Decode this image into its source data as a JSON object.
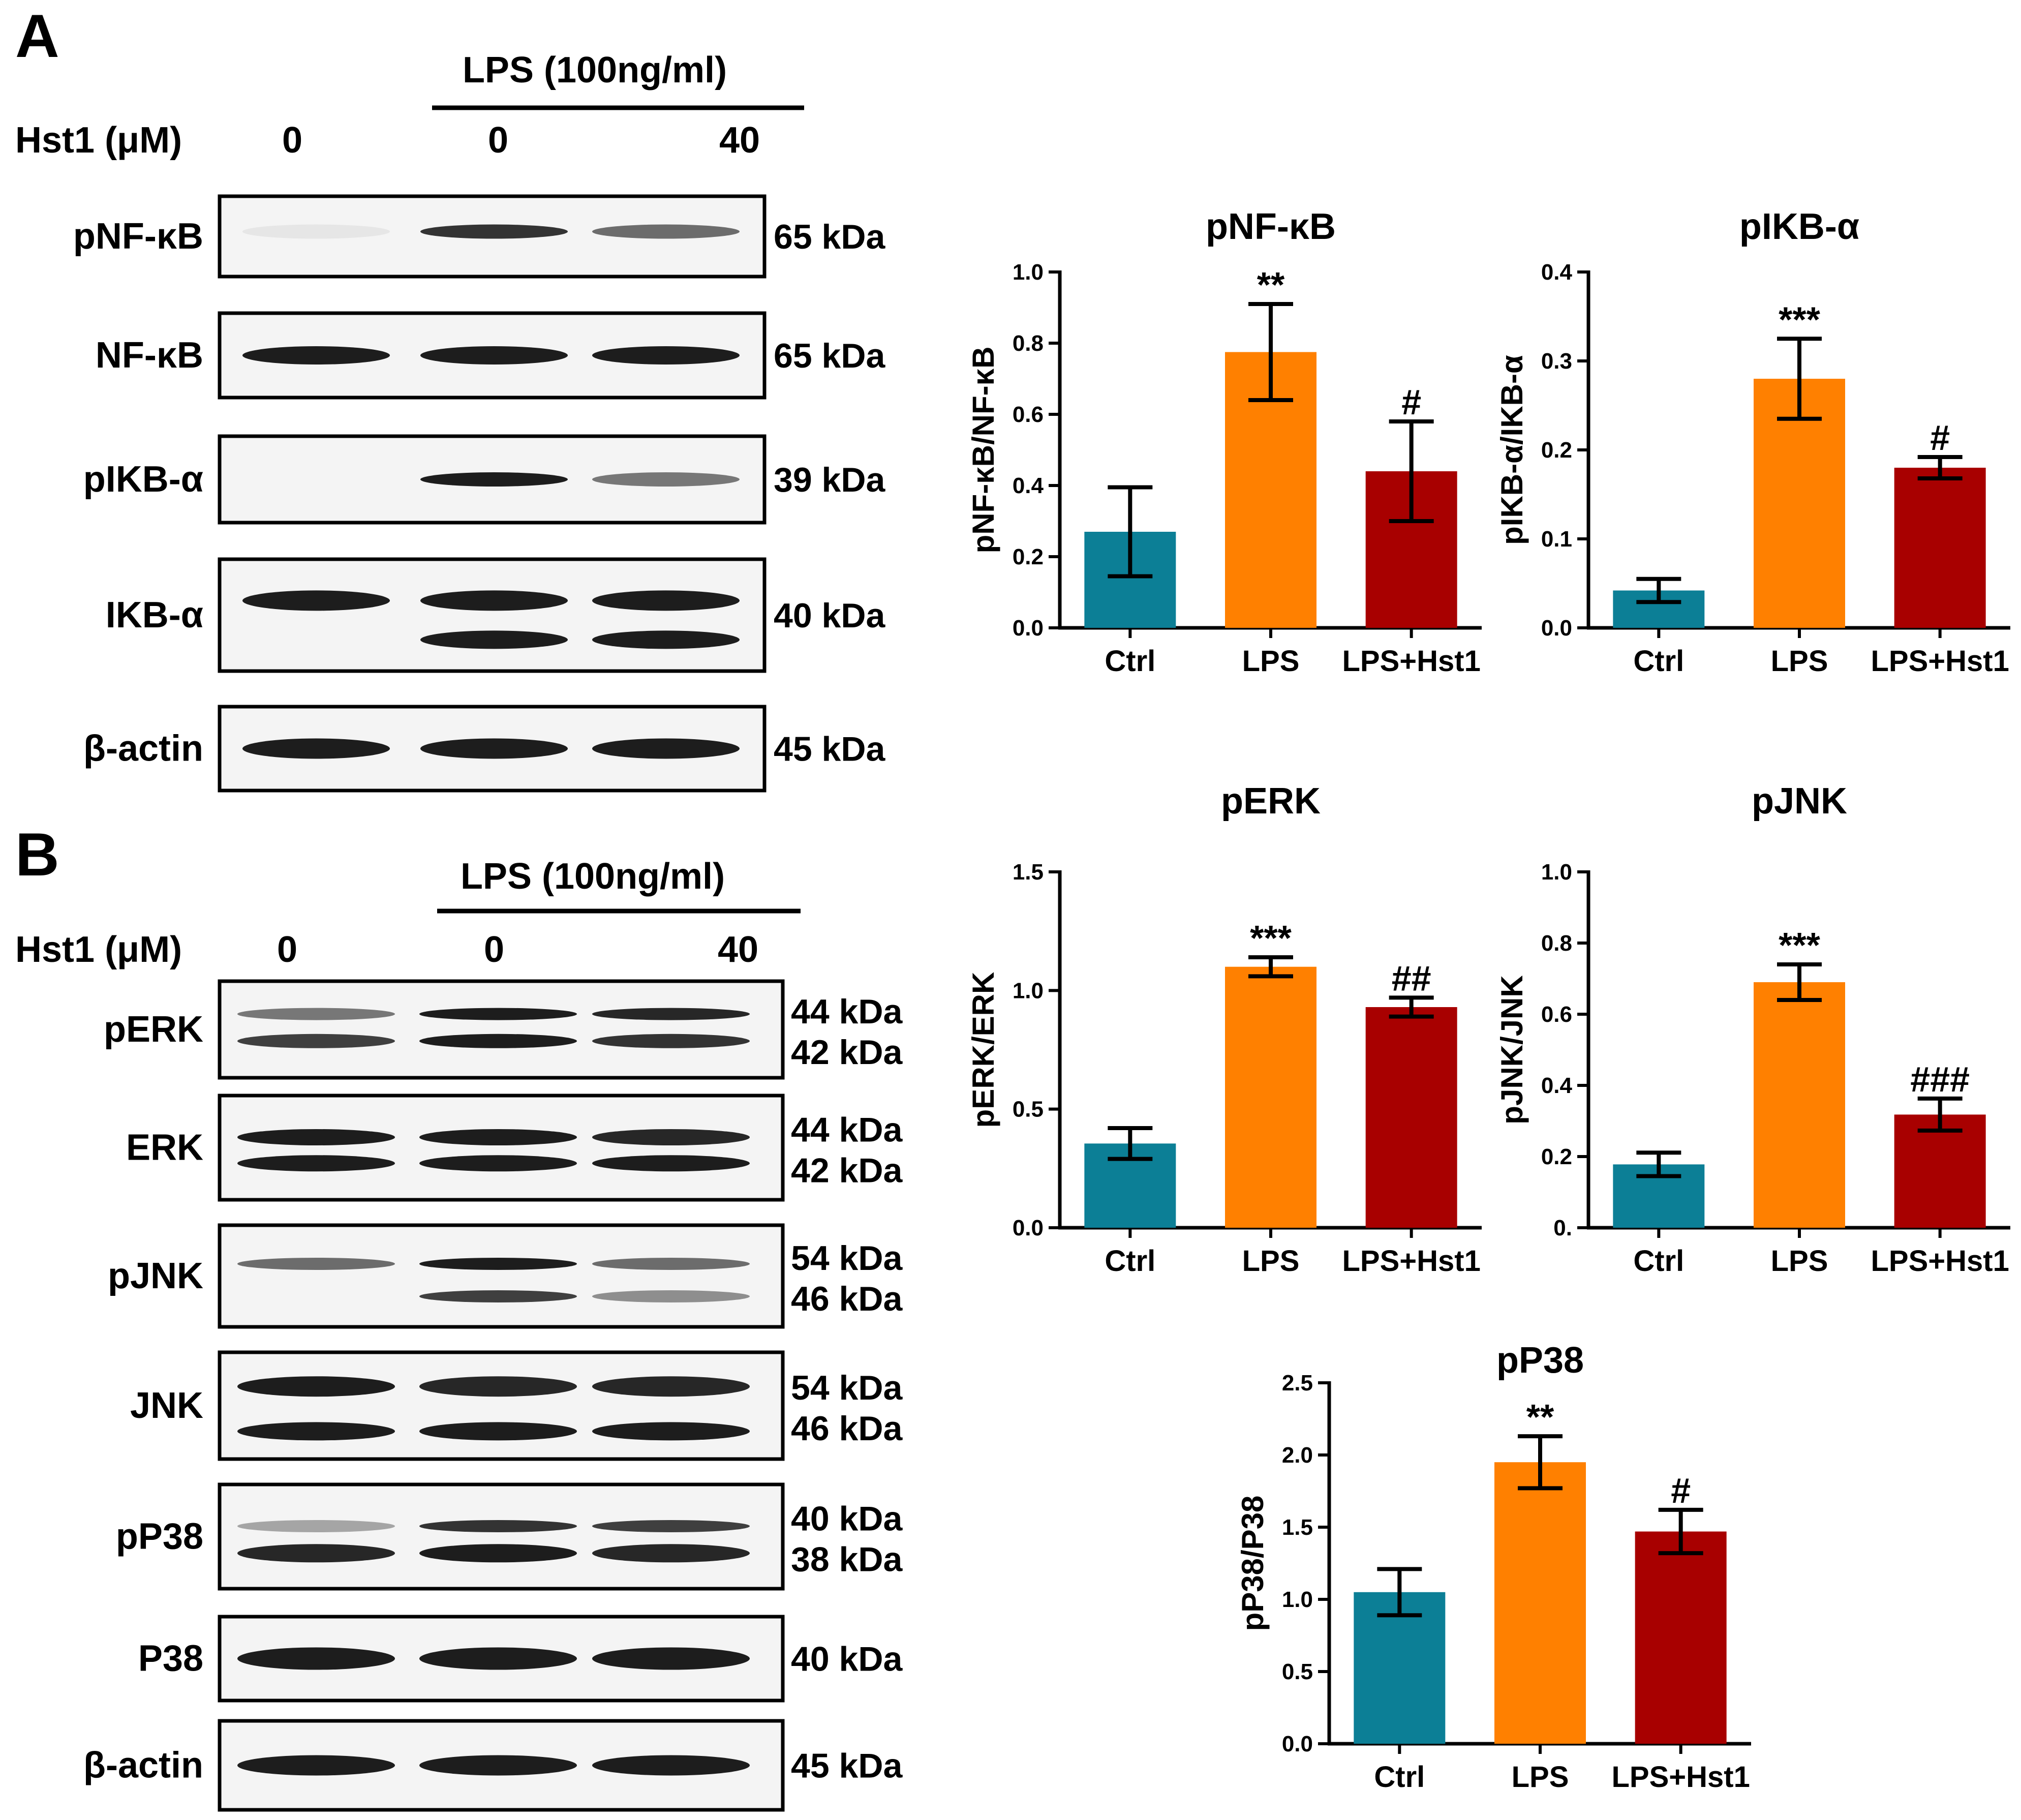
{
  "panel_a": {
    "letter": "A",
    "lps_header": "LPS (100ng/ml)",
    "hst_label": "Hst1 (μM)",
    "doses": [
      "0",
      "0",
      "40"
    ],
    "blots": [
      {
        "name": "pNF-κB",
        "kda": [
          "65 kDa"
        ]
      },
      {
        "name": "NF-κB",
        "kda": [
          "65 kDa"
        ]
      },
      {
        "name": "pIKB-α",
        "kda": [
          "39 kDa"
        ]
      },
      {
        "name": "IKB-α",
        "kda": [
          "40 kDa"
        ]
      },
      {
        "name": "β-actin",
        "kda": [
          "45 kDa"
        ]
      }
    ]
  },
  "panel_b": {
    "letter": "B",
    "lps_header": "LPS (100ng/ml)",
    "hst_label": "Hst1 (μM)",
    "doses": [
      "0",
      "0",
      "40"
    ],
    "blots": [
      {
        "name": "pERK",
        "kda": [
          "44 kDa",
          "42 kDa"
        ]
      },
      {
        "name": "ERK",
        "kda": [
          "44 kDa",
          "42 kDa"
        ]
      },
      {
        "name": "pJNK",
        "kda": [
          "54 kDa",
          "46 kDa"
        ]
      },
      {
        "name": "JNK",
        "kda": [
          "54 kDa",
          "46 kDa"
        ]
      },
      {
        "name": "pP38",
        "kda": [
          "40 kDa",
          "38 kDa"
        ]
      },
      {
        "name": "P38",
        "kda": [
          "40 kDa"
        ]
      },
      {
        "name": "β-actin",
        "kda": [
          "45 kDa"
        ]
      }
    ]
  },
  "colors": {
    "ctrl": "#0c7f96",
    "lps": "#ff8000",
    "lps_hst1": "#a80000"
  },
  "chart_data": [
    {
      "type": "bar",
      "title": "pNF-κB",
      "ylabel": "pNF-κB/NF-κB",
      "categories": [
        "Ctrl",
        "LPS",
        "LPS+Hst1"
      ],
      "values": [
        0.27,
        0.775,
        0.44
      ],
      "errors": [
        0.125,
        0.135,
        0.14
      ],
      "significance": [
        "",
        "**",
        "#"
      ],
      "ylim": [
        0,
        1.0
      ],
      "yticks": [
        "0.0",
        "0.2",
        "0.4",
        "0.6",
        "0.8",
        "1.0"
      ]
    },
    {
      "type": "bar",
      "title": "pIKB-α",
      "ylabel": "pIKB-α/IKB-α",
      "categories": [
        "Ctrl",
        "LPS",
        "LPS+Hst1"
      ],
      "values": [
        0.042,
        0.28,
        0.18
      ],
      "errors": [
        0.013,
        0.045,
        0.012
      ],
      "significance": [
        "",
        "***",
        "#"
      ],
      "ylim": [
        0,
        0.4
      ],
      "yticks": [
        "0.0",
        "0.1",
        "0.2",
        "0.3",
        "0.4"
      ]
    },
    {
      "type": "bar",
      "title": "pERK",
      "ylabel": "pERK/ERK",
      "categories": [
        "Ctrl",
        "LPS",
        "LPS+Hst1"
      ],
      "values": [
        0.355,
        1.1,
        0.93
      ],
      "errors": [
        0.065,
        0.04,
        0.04
      ],
      "significance": [
        "",
        "***",
        "##"
      ],
      "ylim": [
        0,
        1.5
      ],
      "yticks": [
        "0.0",
        "0.5",
        "1.0",
        "1.5"
      ]
    },
    {
      "type": "bar",
      "title": "pJNK",
      "ylabel": "pJNK/JNK",
      "categories": [
        "Ctrl",
        "LPS",
        "LPS+Hst1"
      ],
      "values": [
        0.178,
        0.69,
        0.318
      ],
      "errors": [
        0.033,
        0.05,
        0.045
      ],
      "significance": [
        "",
        "***",
        "###"
      ],
      "ylim": [
        0,
        1.0
      ],
      "yticks": [
        "0.",
        "0.2",
        "0.4",
        "0.6",
        "0.8",
        "1.0"
      ]
    },
    {
      "type": "bar",
      "title": "pP38",
      "ylabel": "pP38/P38",
      "categories": [
        "Ctrl",
        "LPS",
        "LPS+Hst1"
      ],
      "values": [
        1.05,
        1.95,
        1.47
      ],
      "errors": [
        0.16,
        0.18,
        0.15
      ],
      "significance": [
        "",
        "**",
        "#"
      ],
      "ylim": [
        0,
        2.5
      ],
      "yticks": [
        "0.0",
        "0.5",
        "1.0",
        "1.5",
        "2.0",
        "2.5"
      ]
    }
  ]
}
